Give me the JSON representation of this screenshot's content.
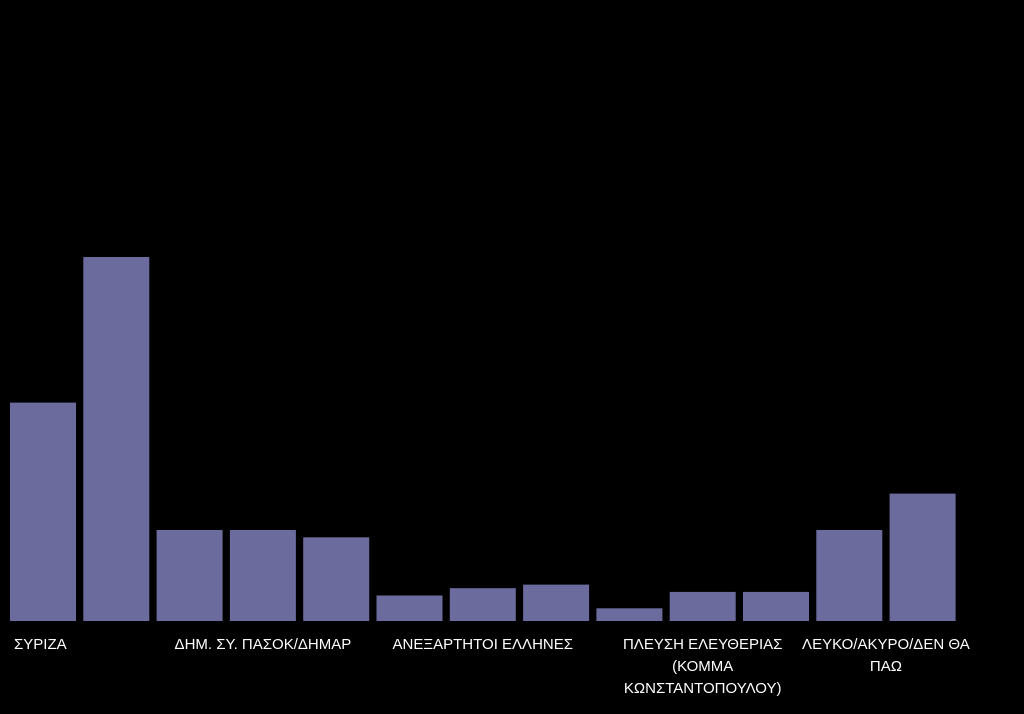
{
  "chart_data": {
    "type": "bar",
    "bar_color": "#6b6b9e",
    "background": "#000000",
    "label_color": "#ffffff",
    "grid": false,
    "legend": "none",
    "ylim": [
      0,
      100
    ],
    "values": [
      60,
      100,
      25,
      25,
      23,
      7,
      9,
      10,
      3.5,
      8,
      8,
      25,
      35
    ],
    "group_labels": [
      {
        "lines": [
          "ΣΥΡΙΖΑ"
        ],
        "bars": [
          0
        ]
      },
      {
        "lines": [
          "ΔΗΜ. ΣΥ. ΠΑΣΟΚ/ΔΗΜΑΡ"
        ],
        "bars": [
          2,
          3,
          4
        ]
      },
      {
        "lines": [
          "ΑΝΕΞΑΡΤΗΤΟΙ ΕΛΛΗΝΕΣ"
        ],
        "bars": [
          5,
          6,
          7
        ]
      },
      {
        "lines": [
          "ΠΛΕΥΣΗ ΕΛΕΥΘΕΡΙΑΣ",
          "(ΚΟΜΜΑ",
          "ΚΩΝΣΤΑΝΤΟΠΟΥΛΟΥ)"
        ],
        "bars": [
          8,
          9,
          10
        ]
      },
      {
        "lines": [
          "ΛΕΥΚΟ/ΑΚΥΡΟ/ΔΕΝ ΘΑ",
          "ΠΑΩ"
        ],
        "bars": [
          11,
          12
        ]
      }
    ]
  }
}
